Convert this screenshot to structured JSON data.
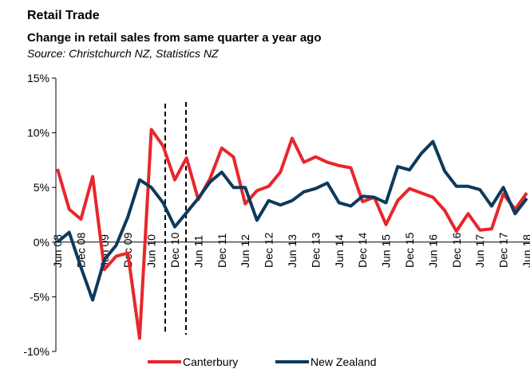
{
  "chart_data": {
    "type": "line",
    "title": "Retail Trade",
    "subtitle": "Change in retail sales from same quarter a year ago",
    "source": "Source: Christchurch NZ, Statistics NZ",
    "categories": [
      "Jun 08",
      null,
      "Dec 08",
      null,
      "Jun 09",
      null,
      "Dec 09",
      null,
      "Jun 10",
      null,
      "Dec 10",
      null,
      "Jun 11",
      null,
      "Dec 11",
      null,
      "Jun 12",
      null,
      "Dec 12",
      null,
      "Jun 13",
      null,
      "Dec 13",
      null,
      "Jun 14",
      null,
      "Dec 14",
      null,
      "Jun 15",
      null,
      "Dec 15",
      null,
      "Jun 16",
      null,
      "Dec 16",
      null,
      "Jun 17",
      null,
      "Dec 17",
      null,
      "Jun 18"
    ],
    "series": [
      {
        "name": "Canterbury",
        "color": "#e8262b",
        "values": [
          6.7,
          3.0,
          2.1,
          6.0,
          -2.5,
          -1.3,
          -1.0,
          -8.8,
          10.3,
          8.8,
          5.7,
          7.7,
          3.9,
          5.8,
          8.6,
          7.8,
          3.5,
          4.7,
          5.1,
          6.4,
          9.5,
          7.3,
          7.8,
          7.3,
          7.0,
          6.8,
          3.7,
          4.1,
          1.6,
          3.8,
          4.9,
          4.5,
          4.1,
          2.9,
          1.0,
          2.6,
          1.1,
          1.2,
          4.4,
          3.0,
          4.5
        ]
      },
      {
        "name": "New Zealand",
        "color": "#0d3a5c",
        "values": [
          0.0,
          0.9,
          -2.3,
          -5.3,
          -1.6,
          -0.3,
          2.3,
          5.7,
          5.0,
          3.6,
          1.4,
          2.7,
          4.0,
          5.5,
          6.4,
          5.0,
          5.0,
          2.0,
          3.8,
          3.4,
          3.8,
          4.6,
          4.9,
          5.4,
          3.6,
          3.3,
          4.2,
          4.1,
          3.6,
          6.9,
          6.6,
          8.1,
          9.2,
          6.5,
          5.1,
          5.1,
          4.8,
          3.3,
          5.0,
          2.6,
          4.0
        ]
      }
    ],
    "ylim": [
      -10,
      15
    ],
    "yticks": [
      {
        "value": -10,
        "label": "-10%"
      },
      {
        "value": -5,
        "label": "-5%"
      },
      {
        "value": 0,
        "label": "0%"
      },
      {
        "value": 5,
        "label": "5%"
      },
      {
        "value": 10,
        "label": "10%"
      },
      {
        "value": 15,
        "label": "15%"
      }
    ],
    "grid": false,
    "legend": "bottom"
  }
}
